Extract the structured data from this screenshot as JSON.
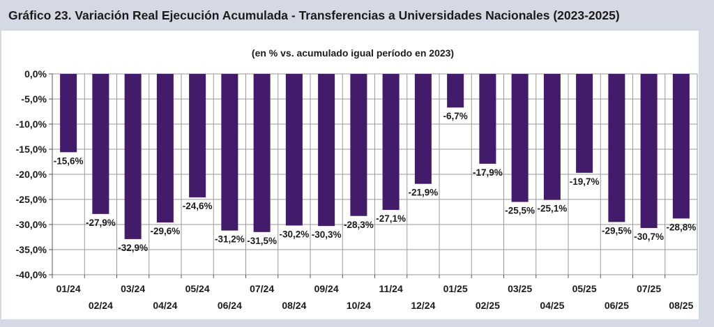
{
  "title": "Gráfico 23. Variación Real Ejecución Acumulada - Transferencias a Universidades Nacionales (2023-2025)",
  "chart_data": {
    "type": "bar",
    "subtitle": "(en % vs. acumulado igual período en 2023)",
    "categories": [
      "01/24",
      "02/24",
      "03/24",
      "04/24",
      "05/24",
      "06/24",
      "07/24",
      "08/24",
      "09/24",
      "10/24",
      "11/24",
      "12/24",
      "01/25",
      "02/25",
      "03/25",
      "04/25",
      "05/25",
      "06/25",
      "07/25",
      "08/25"
    ],
    "values": [
      -15.6,
      -27.9,
      -32.9,
      -29.6,
      -24.6,
      -31.2,
      -31.5,
      -30.2,
      -30.3,
      -28.3,
      -27.1,
      -21.9,
      -6.7,
      -17.9,
      -25.5,
      -25.1,
      -19.7,
      -29.5,
      -30.7,
      -28.8
    ],
    "data_labels": [
      "-15,6%",
      "-27,9%",
      "-32,9%",
      "-29,6%",
      "-24,6%",
      "-31,2%",
      "-31,5%",
      "-30,2%",
      "-30,3%",
      "-28,3%",
      "-27,1%",
      "-21,9%",
      "-6,7%",
      "-17,9%",
      "-25,5%",
      "-25,1%",
      "-19,7%",
      "-29,5%",
      "-30,7%",
      "-28,8%"
    ],
    "yticks": [
      0,
      -5,
      -10,
      -15,
      -20,
      -25,
      -30,
      -35,
      -40
    ],
    "ytick_labels": [
      "0,0%",
      "-5,0%",
      "-10,0%",
      "-15,0%",
      "-20,0%",
      "-25,0%",
      "-30,0%",
      "-35,0%",
      "-40,0%"
    ],
    "ylim": [
      -40,
      0
    ],
    "xlabel": "",
    "ylabel": "",
    "grid": true,
    "bar_color": "#421b6b"
  }
}
